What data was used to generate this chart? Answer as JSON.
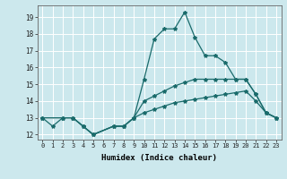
{
  "xlabel": "Humidex (Indice chaleur)",
  "background_color": "#cce8ed",
  "grid_color": "#ffffff",
  "line_color": "#1a6b6b",
  "xlim": [
    -0.5,
    23.5
  ],
  "ylim": [
    11.7,
    19.7
  ],
  "xticks": [
    0,
    1,
    2,
    3,
    4,
    5,
    6,
    7,
    8,
    9,
    10,
    11,
    12,
    13,
    14,
    15,
    16,
    17,
    18,
    19,
    20,
    21,
    22,
    23
  ],
  "yticks": [
    12,
    13,
    14,
    15,
    16,
    17,
    18,
    19
  ],
  "series": [
    {
      "x": [
        0,
        1,
        2,
        3,
        4,
        5,
        7,
        8,
        9,
        10,
        11,
        12,
        13,
        14,
        15,
        16,
        17,
        18,
        19,
        20,
        21,
        22,
        23
      ],
      "y": [
        13.0,
        12.5,
        13.0,
        13.0,
        12.5,
        12.0,
        12.5,
        12.5,
        13.0,
        15.3,
        17.7,
        18.3,
        18.3,
        19.3,
        17.8,
        16.7,
        16.7,
        16.3,
        15.3,
        15.3,
        14.4,
        13.3,
        13.0
      ]
    },
    {
      "x": [
        0,
        2,
        3,
        4,
        5,
        7,
        8,
        9,
        10,
        11,
        12,
        13,
        14,
        15,
        16,
        17,
        18,
        19,
        20,
        21,
        22,
        23
      ],
      "y": [
        13.0,
        13.0,
        13.0,
        12.5,
        12.0,
        12.5,
        12.5,
        13.0,
        14.0,
        14.3,
        14.6,
        14.9,
        15.1,
        15.3,
        15.3,
        15.3,
        15.3,
        15.3,
        15.3,
        14.4,
        13.3,
        13.0
      ]
    },
    {
      "x": [
        0,
        2,
        3,
        4,
        5,
        7,
        8,
        9,
        10,
        11,
        12,
        13,
        14,
        15,
        16,
        17,
        18,
        19,
        20,
        21,
        22,
        23
      ],
      "y": [
        13.0,
        13.0,
        13.0,
        12.5,
        12.0,
        12.5,
        12.5,
        13.0,
        13.3,
        13.5,
        13.7,
        13.9,
        14.0,
        14.1,
        14.2,
        14.3,
        14.4,
        14.5,
        14.6,
        14.0,
        13.3,
        13.0
      ]
    }
  ]
}
